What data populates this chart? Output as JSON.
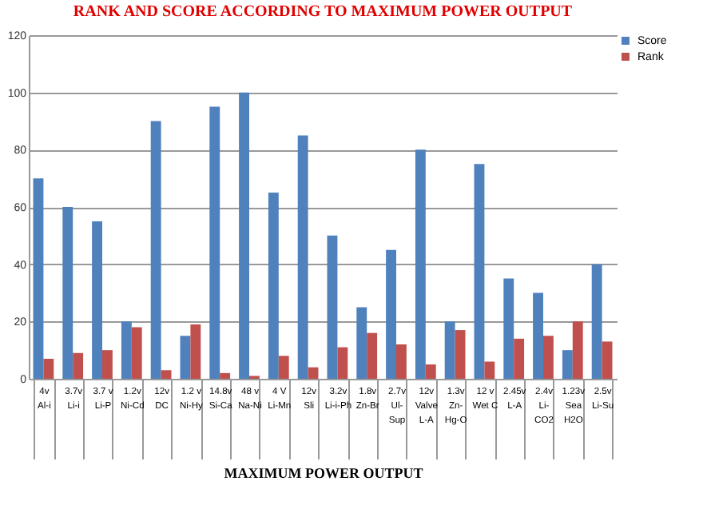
{
  "chart_data": {
    "type": "bar",
    "title": "RANK  AND SCORE ACCORDING TO MAXIMUM   POWER  OUTPUT",
    "xlabel": "MAXIMUM   POWER  OUTPUT",
    "categories": [
      "4v\nAl-i",
      "3.7v\nLi-i",
      "3.7 v\nLi-P",
      "1.2v\nNi-Cd",
      "12v\nDC",
      "1.2 v\nNi-Hy",
      "14.8v\nSi-Ca",
      "48 v\nNa-Ni",
      "4 V\nLi-Mn",
      "12v\nSli",
      "3.2v\nLi-i-Ph",
      "1.8v\nZn-Br",
      "2.7v\nUl-\nSup",
      "12v\nValve\nL-A",
      "1.3v\nZn-\nHg-O",
      "12 v\nWet C",
      "2.45v\nL-A",
      "2.4v\nLi-\nCO2",
      "1.23v\nSea\nH2O",
      "2.5v\nLi-Su"
    ],
    "series": [
      {
        "name": "Score",
        "color": "#4f81bd",
        "values": [
          70,
          60,
          55,
          20,
          90,
          15,
          95,
          100,
          65,
          85,
          50,
          25,
          45,
          80,
          20,
          75,
          35,
          30,
          10,
          40
        ]
      },
      {
        "name": "Rank",
        "color": "#c0504d",
        "values": [
          7,
          9,
          10,
          18,
          3,
          19,
          2,
          1,
          8,
          4,
          11,
          16,
          12,
          5,
          17,
          6,
          14,
          15,
          20,
          13
        ]
      }
    ],
    "ylim": [
      0,
      120
    ],
    "yticks": [
      0,
      20,
      40,
      60,
      80,
      100,
      120
    ],
    "grid": "y",
    "legend": "right"
  }
}
